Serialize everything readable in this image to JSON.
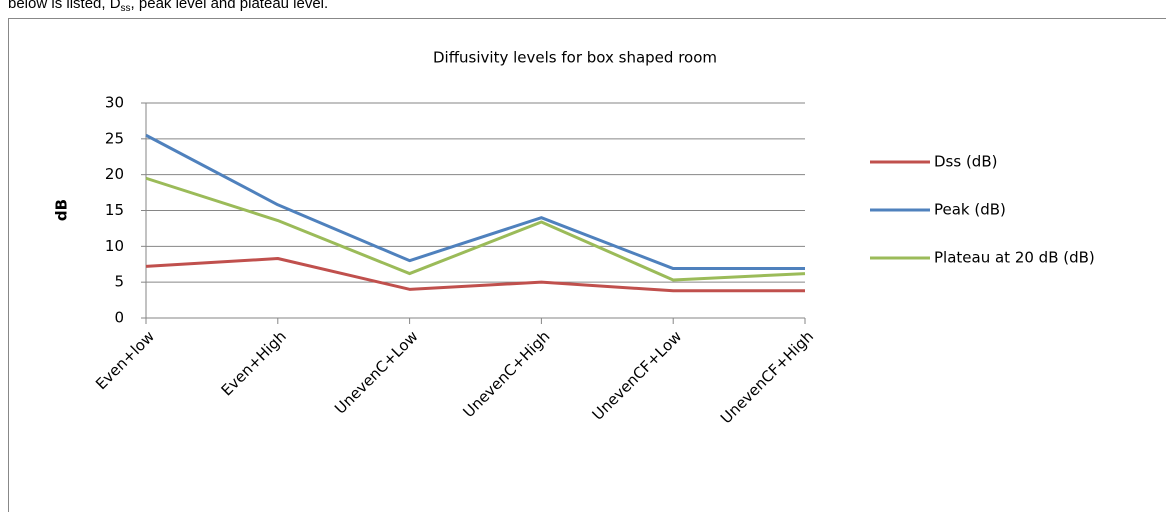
{
  "intro": {
    "before": "below is listed, D",
    "sub": "ss",
    "after": ", peak level and plateau level."
  },
  "chart_data": {
    "type": "line",
    "title": "Diffusivity levels for box shaped room",
    "y_label": "dB",
    "categories": [
      "Even+low",
      "Even+High",
      "UnevenC+Low",
      "UnevenC+High",
      "UnevenCF+Low",
      "UnevenCF+High"
    ],
    "series": [
      {
        "name": "Dss (dB)",
        "color": "#c0504d",
        "values": [
          7.2,
          8.3,
          4.0,
          5.0,
          3.8,
          3.8
        ]
      },
      {
        "name": "Peak (dB)",
        "color": "#4f81bd",
        "values": [
          25.5,
          15.8,
          8.0,
          14.0,
          6.9,
          6.9
        ]
      },
      {
        "name": "Plateau at 20 dB (dB)",
        "color": "#9bbb59",
        "values": [
          19.5,
          13.6,
          6.2,
          13.4,
          5.3,
          6.2
        ]
      }
    ],
    "ylim": [
      0,
      30
    ],
    "yticks": [
      0,
      5,
      10,
      15,
      20,
      25,
      30
    ],
    "grid": true,
    "legend": "right"
  }
}
